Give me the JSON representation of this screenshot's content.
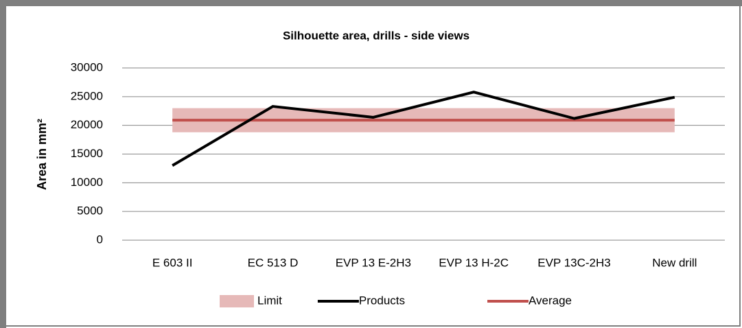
{
  "chart_data": {
    "type": "line",
    "title": "Silhouette area, drills - side views",
    "y_label": "Area in mm²",
    "categories": [
      "E 603 II",
      "EC 513 D",
      "EVP 13 E-2H3",
      "EVP 13 H-2C",
      "EVP 13C-2H3",
      "New drill"
    ],
    "limit": {
      "name": "Limit",
      "color": "#e6b9b8",
      "low": [
        18800,
        18800,
        18800,
        18800,
        18800,
        18800
      ],
      "high": [
        23000,
        23000,
        23000,
        23000,
        23000,
        23000
      ]
    },
    "series": [
      {
        "name": "Products",
        "color": "#000000",
        "values": [
          13000,
          23300,
          21400,
          25800,
          21200,
          24900
        ]
      },
      {
        "name": "Average",
        "color": "#c0504d",
        "values": [
          20900,
          20900,
          20900,
          20900,
          20900,
          20900
        ]
      }
    ],
    "ylim": [
      0,
      30000
    ],
    "yticks": [
      0,
      5000,
      10000,
      15000,
      20000,
      25000,
      30000
    ],
    "grid": true,
    "legend": "bottom"
  }
}
